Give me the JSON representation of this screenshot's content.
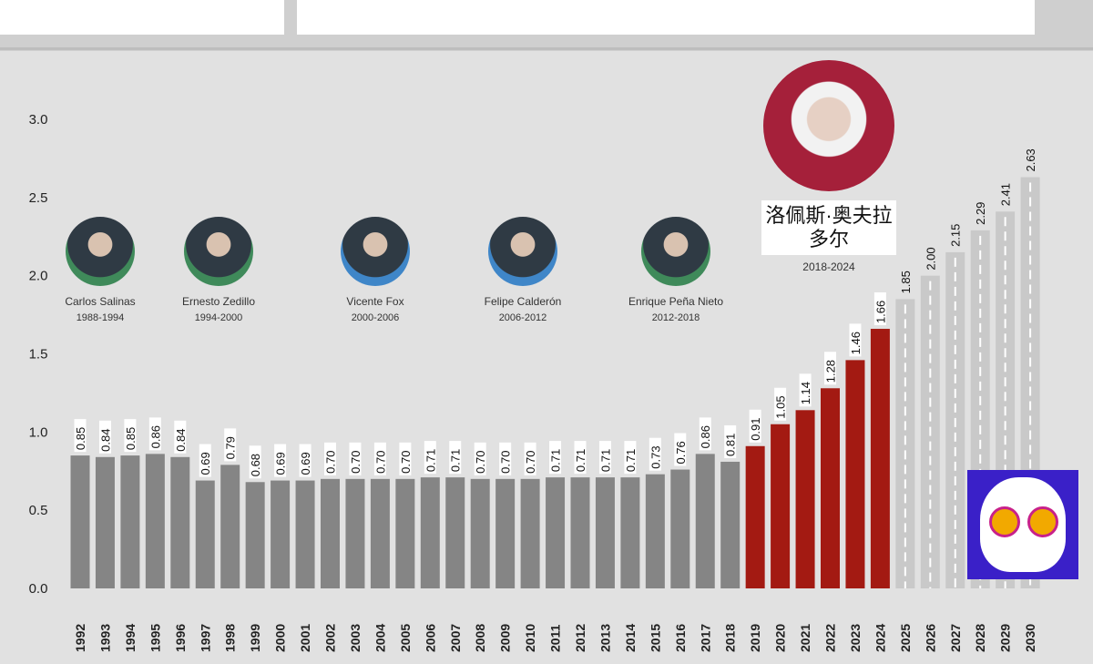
{
  "presidents": [
    {
      "name": "Carlos Salinas",
      "term": "1988-1994"
    },
    {
      "name": "Ernesto Zedillo",
      "term": "1994-2000"
    },
    {
      "name": "Vicente Fox",
      "term": "2000-2006"
    },
    {
      "name": "Felipe Calderón",
      "term": "2006-2012"
    },
    {
      "name": "Enrique Peña Nieto",
      "term": "2012-2018"
    }
  ],
  "current_president": {
    "name": "洛佩斯·奥夫拉多尔",
    "term": "2018-2024"
  },
  "colors": {
    "past": "#858585",
    "current": "#a31a12",
    "projection": "#c9c9c9",
    "background": "#e1e1e1"
  },
  "chart_data": {
    "type": "bar",
    "title": "",
    "xlabel": "",
    "ylabel": "",
    "ylim": [
      0,
      3.0
    ],
    "yticks": [
      "0.0",
      "0.5",
      "1.0",
      "1.5",
      "2.0",
      "2.5",
      "3.0"
    ],
    "grid": false,
    "categories": [
      "1992",
      "1993",
      "1994",
      "1995",
      "1996",
      "1997",
      "1998",
      "1999",
      "2000",
      "2001",
      "2002",
      "2003",
      "2004",
      "2005",
      "2006",
      "2007",
      "2008",
      "2009",
      "2010",
      "2011",
      "2012",
      "2013",
      "2014",
      "2015",
      "2016",
      "2017",
      "2018",
      "2019",
      "2020",
      "2021",
      "2022",
      "2023",
      "2024",
      "2025",
      "2026",
      "2027",
      "2028",
      "2029",
      "2030"
    ],
    "values": [
      0.85,
      0.84,
      0.85,
      0.86,
      0.84,
      0.69,
      0.79,
      0.68,
      0.69,
      0.69,
      0.7,
      0.7,
      0.7,
      0.7,
      0.71,
      0.71,
      0.7,
      0.7,
      0.7,
      0.71,
      0.71,
      0.71,
      0.71,
      0.73,
      0.76,
      0.86,
      0.81,
      0.91,
      1.05,
      1.14,
      1.28,
      1.46,
      1.66,
      1.85,
      2.0,
      2.15,
      2.29,
      2.41,
      2.63
    ],
    "labels": [
      "0.85",
      "0.84",
      "0.85",
      "0.86",
      "0.84",
      "0.69",
      "0.79",
      "0.68",
      "0.69",
      "0.69",
      "0.70",
      "0.70",
      "0.70",
      "0.70",
      "0.71",
      "0.71",
      "0.70",
      "0.70",
      "0.70",
      "0.71",
      "0.71",
      "0.71",
      "0.71",
      "0.73",
      "0.76",
      "0.86",
      "0.81",
      "0.91",
      "1.05",
      "1.14",
      "1.28",
      "1.46",
      "1.66",
      "1.85",
      "2.00",
      "2.15",
      "2.29",
      "2.41",
      "2.63"
    ],
    "groups": [
      "past",
      "past",
      "past",
      "past",
      "past",
      "past",
      "past",
      "past",
      "past",
      "past",
      "past",
      "past",
      "past",
      "past",
      "past",
      "past",
      "past",
      "past",
      "past",
      "past",
      "past",
      "past",
      "past",
      "past",
      "past",
      "past",
      "past",
      "current",
      "current",
      "current",
      "current",
      "current",
      "current",
      "projection",
      "projection",
      "projection",
      "projection",
      "projection",
      "projection"
    ]
  }
}
